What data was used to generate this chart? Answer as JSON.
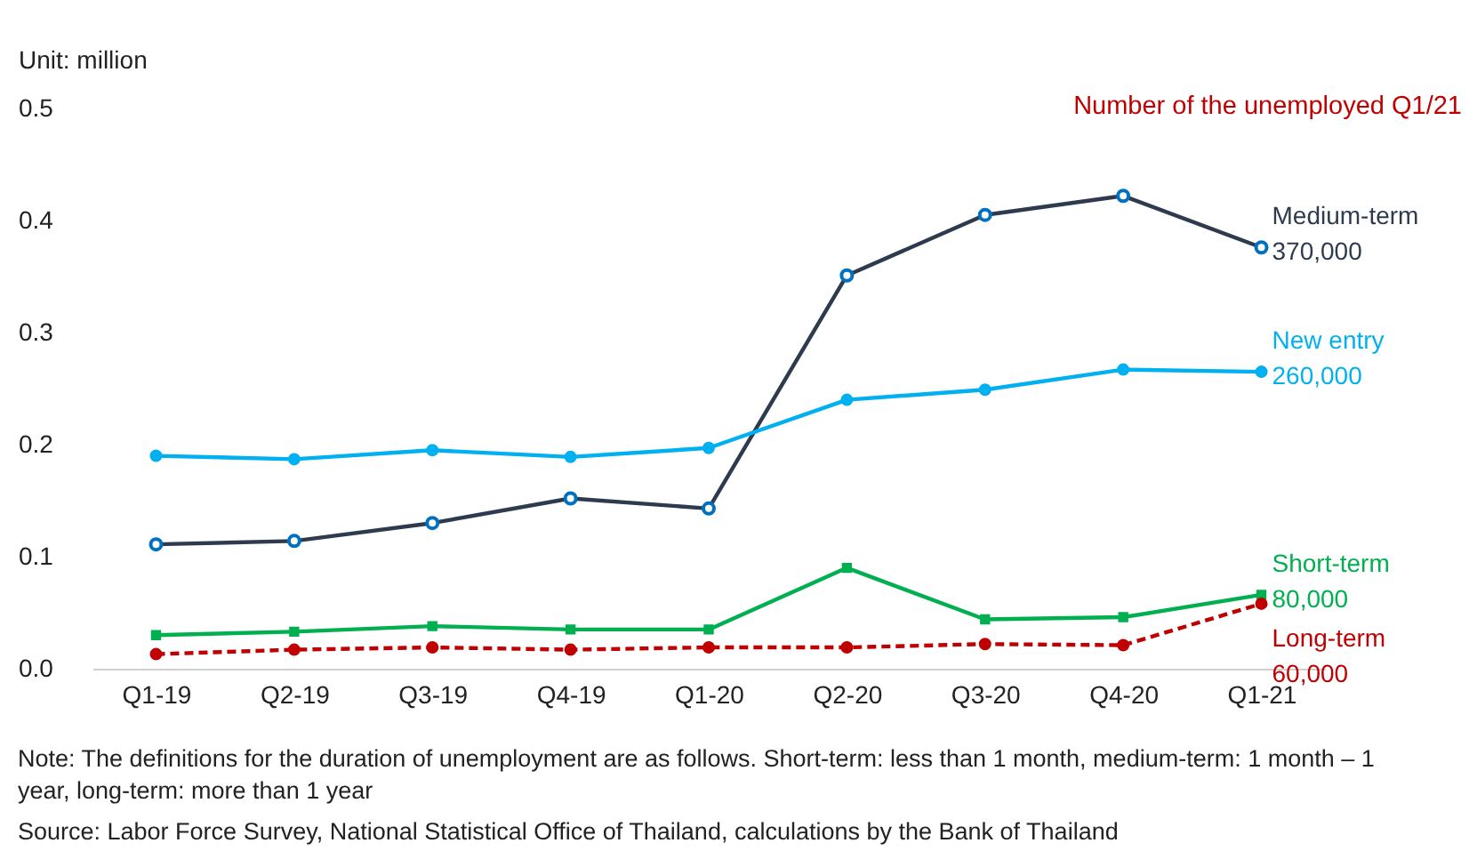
{
  "chart_data": {
    "type": "line",
    "ylabel": "Unit: million",
    "categories": [
      "Q1-19",
      "Q2-19",
      "Q3-19",
      "Q4-19",
      "Q1-20",
      "Q2-20",
      "Q3-20",
      "Q4-20",
      "Q1-21"
    ],
    "series": [
      {
        "name": "Medium-term",
        "color": "#2e3b4e",
        "marker": "circle",
        "line_style": "solid",
        "values": [
          0.111,
          0.114,
          0.13,
          0.152,
          0.143,
          0.351,
          0.405,
          0.422,
          0.376
        ]
      },
      {
        "name": "New entry",
        "color": "#00b0f0",
        "marker": "circle",
        "line_style": "solid",
        "values": [
          0.19,
          0.187,
          0.195,
          0.189,
          0.197,
          0.24,
          0.249,
          0.267,
          0.265
        ]
      },
      {
        "name": "Short-term",
        "color": "#00b050",
        "marker": "square",
        "line_style": "solid",
        "values": [
          0.03,
          0.033,
          0.038,
          0.035,
          0.035,
          0.09,
          0.044,
          0.046,
          0.066
        ]
      },
      {
        "name": "Long-term",
        "color": "#c00000",
        "marker": "circle",
        "line_style": "dashed",
        "values": [
          0.013,
          0.017,
          0.019,
          0.017,
          0.019,
          0.019,
          0.022,
          0.021,
          0.058
        ]
      }
    ],
    "ylim": [
      0,
      0.5
    ],
    "yticks": [
      {
        "value": 0,
        "label": "0.0"
      },
      0.1,
      0.2,
      0.3,
      0.4,
      0.5
    ],
    "grid": false,
    "annotations": [
      "370,000",
      "260,000",
      "80,000",
      "60,000",
      "Number of the unemployed Q1/21",
      "Note: The definitions for the duration of unemployment are as follows. Short-term: less than 1 month, medium-term: 1 month – 1 year, long-term: more than 1 year",
      "Source: Labor Force Survey, National Statistical Office of Thailand, calculations by the Bank of Thailand"
    ]
  }
}
